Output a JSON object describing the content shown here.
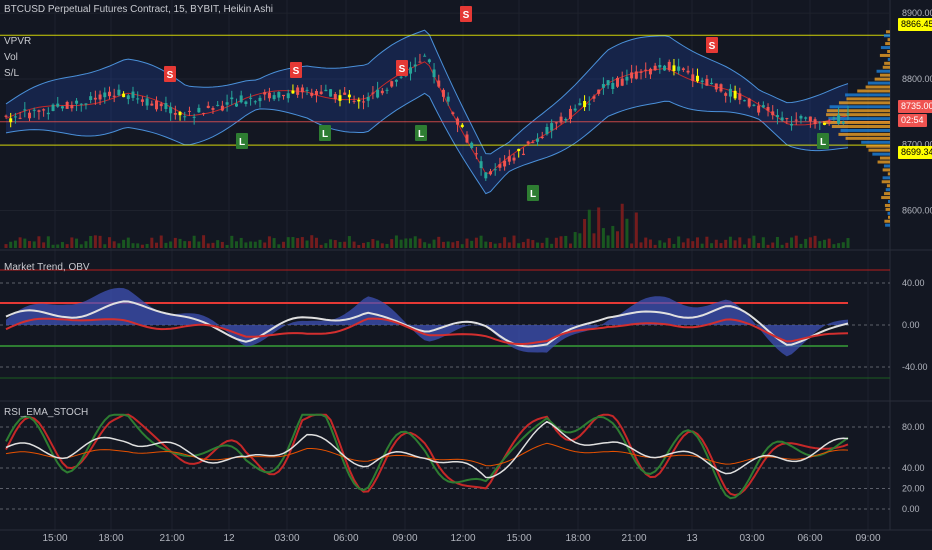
{
  "header": {
    "title": "BTCUSD Perpetual Futures Contract, 15, BYBIT, Heikin Ashi",
    "indicators": [
      "VPVR",
      "Vol",
      "S/L"
    ]
  },
  "price_axis": {
    "ticks": [
      "8900.00",
      "8800.00",
      "8700.00",
      "8600.00"
    ],
    "tags": [
      {
        "text": "8866.45",
        "bg": "#ffff00",
        "fg": "#000000"
      },
      {
        "text": "8735.00",
        "bg": "#ef5350",
        "fg": "#ffffff"
      },
      {
        "text": "02:54",
        "bg": "#ef5350",
        "fg": "#ffffff"
      },
      {
        "text": "8699.34",
        "bg": "#ffff00",
        "fg": "#000000"
      }
    ]
  },
  "pane2": {
    "title": "Market Trend, OBV",
    "ticks": [
      "40.00",
      "0.00",
      "-40.00"
    ]
  },
  "pane3": {
    "title": "RSI_EMA_STOCH",
    "ticks": [
      "80.00",
      "40.00",
      "20.00",
      "0.00"
    ]
  },
  "time_axis": [
    "15:00",
    "18:00",
    "21:00",
    "12",
    "03:00",
    "06:00",
    "09:00",
    "12:00",
    "15:00",
    "18:00",
    "21:00",
    "13",
    "03:00",
    "06:00",
    "09:00"
  ],
  "signals": [
    {
      "type": "S",
      "time": "21:00"
    },
    {
      "type": "S",
      "time": "03:00"
    },
    {
      "type": "S",
      "time": "09:00"
    },
    {
      "type": "S",
      "time": "12:00"
    },
    {
      "type": "S",
      "time": "13"
    },
    {
      "type": "L",
      "time": "03:00"
    },
    {
      "type": "L",
      "time": "06:00"
    },
    {
      "type": "L",
      "time": "09:00"
    },
    {
      "type": "L",
      "time": "15:00"
    },
    {
      "type": "L",
      "time": "06:00"
    }
  ],
  "colors": {
    "up": "#26a69a",
    "down": "#ef5350",
    "band": "#2962ff",
    "level": "#ffff00",
    "obv": "#3f51b5"
  },
  "chart_data": [
    {
      "type": "candlestick",
      "title": "BTCUSD Perpetual Futures Contract, 15, BYBIT, Heikin Ashi",
      "x": [
        "15:00",
        "18:00",
        "21:00",
        "12",
        "03:00",
        "06:00",
        "09:00",
        "12:00",
        "15:00",
        "18:00",
        "21:00",
        "13",
        "03:00",
        "06:00",
        "09:00"
      ],
      "close": [
        8740,
        8760,
        8778,
        8745,
        8770,
        8782,
        8768,
        8830,
        8650,
        8720,
        8790,
        8820,
        8780,
        8735,
        8740
      ],
      "ylim": [
        8540,
        8920
      ],
      "levels": [
        8866.45,
        8735.0,
        8699.34
      ]
    },
    {
      "type": "line",
      "title": "Market Trend, OBV",
      "x": [
        "15:00",
        "18:00",
        "21:00",
        "12",
        "03:00",
        "06:00",
        "09:00",
        "12:00",
        "15:00",
        "18:00",
        "21:00",
        "13",
        "03:00",
        "06:00",
        "09:00"
      ],
      "series": [
        {
          "values": [
            5,
            25,
            30,
            10,
            -15,
            0,
            25,
            -10,
            -5,
            -30,
            10,
            25,
            20,
            -25,
            5
          ]
        }
      ],
      "ylim": [
        -60,
        60
      ],
      "levels": [
        40,
        0,
        -40
      ]
    },
    {
      "type": "line",
      "title": "RSI_EMA_STOCH",
      "x": [
        "15:00",
        "18:00",
        "21:00",
        "12",
        "03:00",
        "06:00",
        "09:00",
        "12:00",
        "15:00",
        "18:00",
        "21:00",
        "13",
        "03:00",
        "06:00",
        "09:00"
      ],
      "series": [
        {
          "values": [
            60,
            55,
            70,
            55,
            45,
            70,
            45,
            55,
            30,
            80,
            60,
            55,
            40,
            50,
            65
          ]
        }
      ],
      "ylim": [
        0,
        100
      ],
      "levels": [
        80,
        40,
        20,
        0
      ]
    }
  ]
}
